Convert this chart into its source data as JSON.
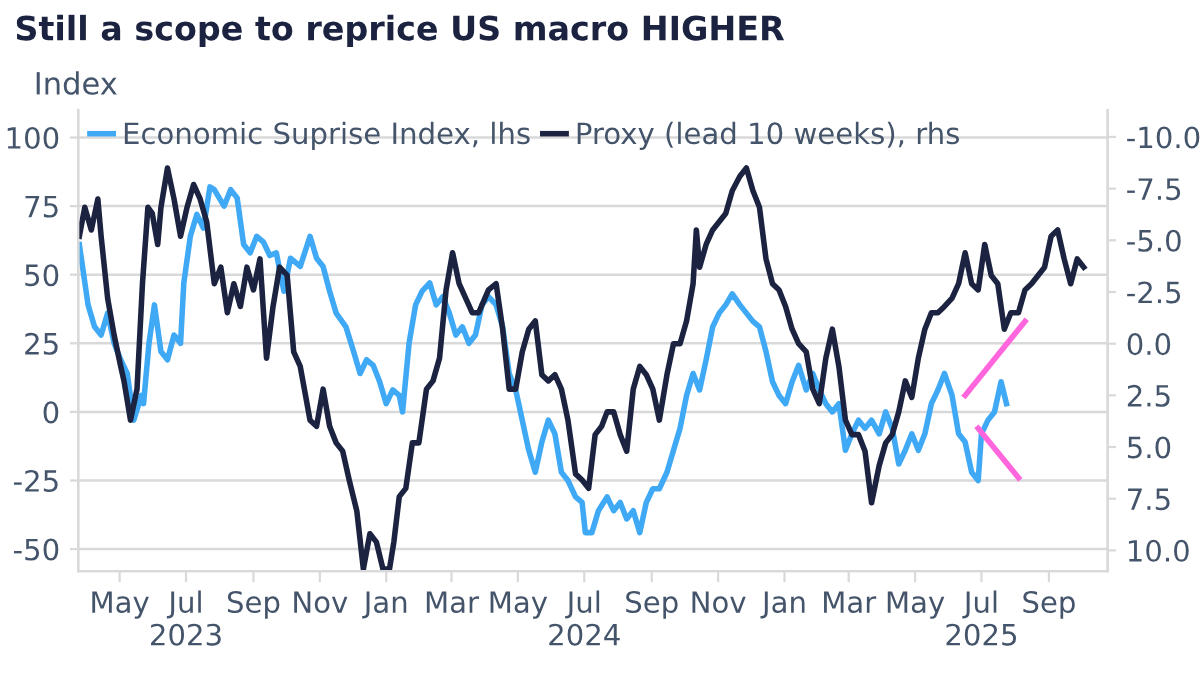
{
  "chart_data": {
    "type": "line",
    "title": "Still a scope to reprice US macro HIGHER",
    "ylabel": "Index",
    "xlim": [
      "2023-03-24",
      "2025-10-25"
    ],
    "xticks": [
      {
        "value": "2023-05-01",
        "label": "May"
      },
      {
        "value": "2023-07-01",
        "label": "Jul\n2023"
      },
      {
        "value": "2023-09-01",
        "label": "Sep"
      },
      {
        "value": "2023-11-01",
        "label": "Nov"
      },
      {
        "value": "2024-01-01",
        "label": "Jan"
      },
      {
        "value": "2024-03-01",
        "label": "Mar"
      },
      {
        "value": "2024-05-01",
        "label": "May"
      },
      {
        "value": "2024-07-01",
        "label": "Jul\n2024"
      },
      {
        "value": "2024-09-01",
        "label": "Sep"
      },
      {
        "value": "2024-11-01",
        "label": "Nov"
      },
      {
        "value": "2025-01-01",
        "label": "Jan"
      },
      {
        "value": "2025-03-01",
        "label": "Mar"
      },
      {
        "value": "2025-05-01",
        "label": "May"
      },
      {
        "value": "2025-07-01",
        "label": "Jul\n2025"
      },
      {
        "value": "2025-09-01",
        "label": "Sep"
      }
    ],
    "ylim": [
      -58,
      110
    ],
    "yticks": [
      -50,
      -25,
      0,
      25,
      50,
      75,
      100
    ],
    "y2lim": [
      11,
      -11.3
    ],
    "y2ticks": [
      {
        "value": -10,
        "label": "-10.0"
      },
      {
        "value": -7.5,
        "label": "-7.5"
      },
      {
        "value": -5,
        "label": "-5.0"
      },
      {
        "value": -2.5,
        "label": "-2.5"
      },
      {
        "value": 0,
        "label": "0.0"
      },
      {
        "value": 2.5,
        "label": "2.5"
      },
      {
        "value": 5,
        "label": "5.0"
      },
      {
        "value": 7.5,
        "label": "7.5"
      },
      {
        "value": 10,
        "label": "10.0"
      }
    ],
    "grid": "y",
    "legend": "top left",
    "series": [
      {
        "name": "Economic Suprise Index, lhs",
        "color": "#3fa9f5",
        "axis": "y",
        "x": [
          "2023-03-25",
          "2023-04-02",
          "2023-04-08",
          "2023-04-14",
          "2023-04-20",
          "2023-04-26",
          "2023-05-02",
          "2023-05-08",
          "2023-05-14",
          "2023-05-21",
          "2023-05-23",
          "2023-05-28",
          "2023-06-02",
          "2023-06-08",
          "2023-06-14",
          "2023-06-20",
          "2023-06-26",
          "2023-06-29",
          "2023-07-05",
          "2023-07-11",
          "2023-07-17",
          "2023-07-23",
          "2023-07-27",
          "2023-08-05",
          "2023-08-11",
          "2023-08-17",
          "2023-08-23",
          "2023-08-29",
          "2023-09-04",
          "2023-09-10",
          "2023-09-16",
          "2023-09-22",
          "2023-09-29",
          "2023-10-05",
          "2023-10-14",
          "2023-10-23",
          "2023-10-29",
          "2023-11-04",
          "2023-11-10",
          "2023-11-16",
          "2023-11-25",
          "2023-12-02",
          "2023-12-08",
          "2023-12-14",
          "2023-12-20",
          "2023-12-26",
          "2024-01-01",
          "2024-01-07",
          "2024-01-13",
          "2024-01-16",
          "2024-01-22",
          "2024-01-28",
          "2024-02-03",
          "2024-02-10",
          "2024-02-16",
          "2024-02-22",
          "2024-02-28",
          "2024-03-05",
          "2024-03-11",
          "2024-03-17",
          "2024-03-23",
          "2024-03-29",
          "2024-04-04",
          "2024-04-11",
          "2024-04-17",
          "2024-04-23",
          "2024-04-29",
          "2024-05-05",
          "2024-05-11",
          "2024-05-17",
          "2024-05-23",
          "2024-05-29",
          "2024-06-04",
          "2024-06-10",
          "2024-06-16",
          "2024-06-23",
          "2024-06-29",
          "2024-07-02",
          "2024-07-08",
          "2024-07-14",
          "2024-07-22",
          "2024-07-28",
          "2024-08-03",
          "2024-08-09",
          "2024-08-15",
          "2024-08-21",
          "2024-08-27",
          "2024-09-02",
          "2024-09-08",
          "2024-09-15",
          "2024-09-21",
          "2024-09-27",
          "2024-10-03",
          "2024-10-09",
          "2024-10-15",
          "2024-10-21",
          "2024-10-27",
          "2024-11-02",
          "2024-11-08",
          "2024-11-14",
          "2024-11-21",
          "2024-11-27",
          "2024-12-03",
          "2024-12-09",
          "2024-12-15",
          "2024-12-21",
          "2024-12-27",
          "2025-01-02",
          "2025-01-08",
          "2025-01-14",
          "2025-01-21",
          "2025-01-27",
          "2025-02-02",
          "2025-02-08",
          "2025-02-14",
          "2025-02-20",
          "2025-02-26",
          "2025-03-04",
          "2025-03-10",
          "2025-03-16",
          "2025-03-22",
          "2025-03-29",
          "2025-04-04",
          "2025-04-10",
          "2025-04-16",
          "2025-04-22",
          "2025-04-28",
          "2025-05-04",
          "2025-05-10",
          "2025-05-16",
          "2025-05-22",
          "2025-05-28",
          "2025-06-04",
          "2025-06-10",
          "2025-06-16",
          "2025-06-22",
          "2025-06-28",
          "2025-07-01",
          "2025-07-07",
          "2025-07-13",
          "2025-07-19",
          "2025-07-24"
        ],
        "values": [
          61,
          39,
          31,
          28,
          36,
          25,
          19,
          14,
          -3,
          6,
          3,
          25,
          39,
          22,
          19,
          28,
          25,
          47,
          64,
          72,
          67,
          82,
          81,
          75,
          81,
          78,
          61,
          58,
          64,
          62,
          57,
          58,
          44,
          56,
          53,
          64,
          56,
          53,
          44,
          36,
          31,
          22,
          14,
          19,
          17,
          11,
          3,
          8,
          6,
          0,
          25,
          39,
          44,
          47,
          39,
          42,
          36,
          28,
          31,
          25,
          28,
          39,
          42,
          39,
          31,
          14,
          8,
          -3,
          -14,
          -22,
          -11,
          -3,
          -8,
          -22,
          -25,
          -31,
          -33,
          -44,
          -44,
          -36,
          -31,
          -36,
          -33,
          -39,
          -36,
          -44,
          -33,
          -28,
          -28,
          -22,
          -14,
          -6,
          6,
          14,
          8,
          19,
          31,
          36,
          39,
          43,
          39,
          36,
          33,
          31,
          22,
          11,
          6,
          3,
          11,
          17,
          8,
          14,
          8,
          3,
          0,
          3,
          -14,
          -8,
          -3,
          -6,
          -3,
          -8,
          0,
          -6,
          -19,
          -14,
          -8,
          -14,
          -8,
          3,
          8,
          14,
          6,
          -8,
          -11,
          -22,
          -25,
          -8,
          -3,
          0,
          11,
          3
        ]
      },
      {
        "name": "Proxy (lead 10 weeks), rhs",
        "color": "#1b2341",
        "axis": "y2",
        "x": [
          "2023-03-25",
          "2023-03-30",
          "2023-04-05",
          "2023-04-11",
          "2023-04-14",
          "2023-04-20",
          "2023-04-26",
          "2023-05-02",
          "2023-05-05",
          "2023-05-11",
          "2023-05-17",
          "2023-05-22",
          "2023-05-27",
          "2023-05-31",
          "2023-06-05",
          "2023-06-08",
          "2023-06-14",
          "2023-06-20",
          "2023-06-26",
          "2023-07-02",
          "2023-07-08",
          "2023-07-14",
          "2023-07-20",
          "2023-07-27",
          "2023-08-02",
          "2023-08-08",
          "2023-08-14",
          "2023-08-20",
          "2023-08-26",
          "2023-09-01",
          "2023-09-07",
          "2023-09-13",
          "2023-09-19",
          "2023-09-25",
          "2023-10-02",
          "2023-10-08",
          "2023-10-14",
          "2023-10-23",
          "2023-10-29",
          "2023-11-04",
          "2023-11-10",
          "2023-11-16",
          "2023-11-22",
          "2023-11-28",
          "2023-12-05",
          "2023-12-11",
          "2023-12-17",
          "2023-12-23",
          "2023-12-29",
          "2024-01-04",
          "2024-01-08",
          "2024-01-13",
          "2024-01-19",
          "2024-01-25",
          "2024-01-31",
          "2024-02-07",
          "2024-02-13",
          "2024-02-19",
          "2024-02-25",
          "2024-03-02",
          "2024-03-08",
          "2024-03-14",
          "2024-03-20",
          "2024-03-26",
          "2024-04-04",
          "2024-04-11",
          "2024-04-17",
          "2024-04-23",
          "2024-04-29",
          "2024-05-05",
          "2024-05-11",
          "2024-05-17",
          "2024-05-23",
          "2024-05-29",
          "2024-06-04",
          "2024-06-10",
          "2024-06-16",
          "2024-06-23",
          "2024-06-29",
          "2024-07-05",
          "2024-07-11",
          "2024-07-17",
          "2024-07-22",
          "2024-07-28",
          "2024-08-03",
          "2024-08-09",
          "2024-08-15",
          "2024-08-21",
          "2024-08-27",
          "2024-09-02",
          "2024-09-08",
          "2024-09-15",
          "2024-09-21",
          "2024-09-27",
          "2024-10-03",
          "2024-10-09",
          "2024-10-12",
          "2024-10-15",
          "2024-10-21",
          "2024-10-27",
          "2024-11-02",
          "2024-11-08",
          "2024-11-14",
          "2024-11-21",
          "2024-11-27",
          "2024-12-03",
          "2024-12-09",
          "2024-12-15",
          "2024-12-21",
          "2024-12-27",
          "2025-01-02",
          "2025-01-08",
          "2025-01-14",
          "2025-01-21",
          "2025-01-27",
          "2025-02-02",
          "2025-02-08",
          "2025-02-14",
          "2025-02-20",
          "2025-02-26",
          "2025-03-04",
          "2025-03-10",
          "2025-03-16",
          "2025-03-22",
          "2025-03-29",
          "2025-04-04",
          "2025-04-10",
          "2025-04-16",
          "2025-04-22",
          "2025-04-28",
          "2025-05-04",
          "2025-05-10",
          "2025-05-16",
          "2025-05-22",
          "2025-05-28",
          "2025-06-04",
          "2025-06-10",
          "2025-06-16",
          "2025-06-22",
          "2025-06-28",
          "2025-07-04",
          "2025-07-10",
          "2025-07-16",
          "2025-07-22",
          "2025-07-28",
          "2025-08-04",
          "2025-08-10",
          "2025-08-16",
          "2025-08-22",
          "2025-08-28",
          "2025-09-03",
          "2025-09-09",
          "2025-09-15",
          "2025-09-21",
          "2025-09-27",
          "2025-10-03"
        ],
        "values": [
          -5.2,
          -6.6,
          -5.5,
          -7.0,
          -5.2,
          -2.2,
          -0.4,
          1.1,
          1.8,
          3.7,
          2.2,
          -2.9,
          -6.6,
          -6.3,
          -4.8,
          -6.6,
          -8.5,
          -7.0,
          -5.2,
          -6.6,
          -7.7,
          -7.0,
          -5.9,
          -2.9,
          -3.7,
          -1.5,
          -2.9,
          -1.8,
          -3.7,
          -2.6,
          -4.1,
          0.7,
          -1.8,
          -3.7,
          -3.3,
          0.4,
          1.1,
          3.7,
          4.0,
          2.2,
          4.0,
          4.8,
          5.2,
          6.6,
          8.1,
          10.9,
          9.2,
          9.6,
          10.9,
          10.9,
          9.6,
          7.4,
          7.0,
          4.8,
          4.8,
          2.2,
          1.8,
          0.7,
          -2.6,
          -4.4,
          -2.9,
          -2.2,
          -1.5,
          -1.5,
          -2.6,
          -2.9,
          -0.7,
          2.2,
          2.2,
          0.4,
          -0.7,
          -1.1,
          1.5,
          1.8,
          1.5,
          2.2,
          3.7,
          6.3,
          6.6,
          7.0,
          4.4,
          4.0,
          3.3,
          3.3,
          4.4,
          5.2,
          2.2,
          1.1,
          1.5,
          2.2,
          3.7,
          1.5,
          0.0,
          0.0,
          -1.1,
          -2.9,
          -5.5,
          -3.7,
          -4.8,
          -5.5,
          -5.9,
          -6.3,
          -7.4,
          -8.1,
          -8.5,
          -7.4,
          -6.6,
          -4.1,
          -2.9,
          -2.6,
          -1.8,
          -0.7,
          0.0,
          0.4,
          2.2,
          2.9,
          0.7,
          -0.7,
          1.1,
          3.7,
          4.4,
          4.4,
          5.2,
          7.7,
          5.9,
          4.8,
          4.4,
          3.3,
          1.8,
          2.6,
          0.7,
          -0.7,
          -1.5,
          -1.5,
          -1.8,
          -2.2,
          -2.9,
          -4.4,
          -2.9,
          -2.6,
          -4.8,
          -3.3,
          -2.9,
          -0.7,
          -1.5,
          -1.5,
          -2.6,
          -2.9,
          -3.3,
          -3.7,
          -5.2,
          -5.5,
          -4.1,
          -2.9,
          -4.1,
          -3.7
        ]
      },
      {
        "color": "#ff66dd",
        "axis": "y",
        "x": [
          "2025-06-16",
          "2025-08-10"
        ],
        "values": [
          6,
          33
        ]
      },
      {
        "color": "#ff66dd",
        "axis": "y",
        "x": [
          "2025-06-28",
          "2025-08-04"
        ],
        "values": [
          -6,
          -24
        ]
      }
    ]
  }
}
